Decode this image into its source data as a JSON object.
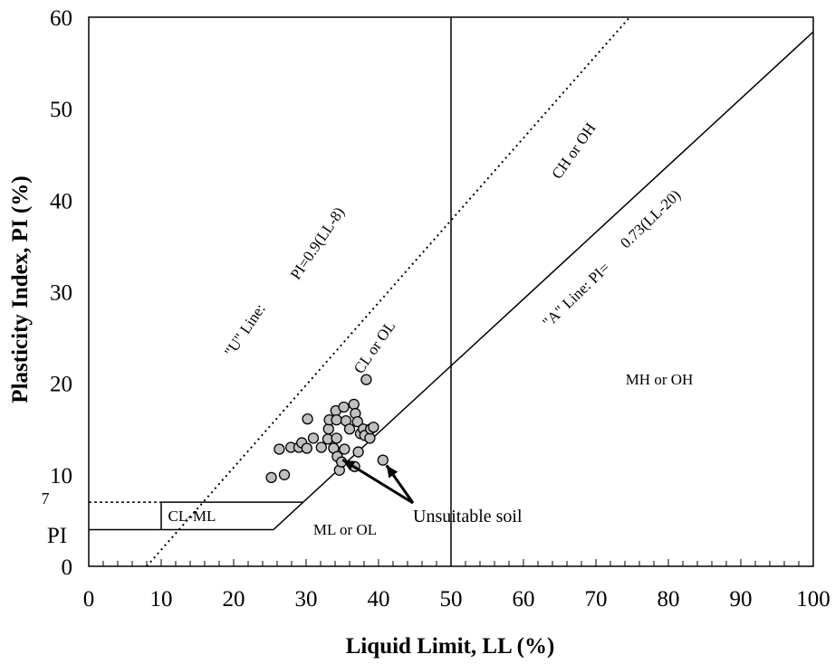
{
  "chart_data": {
    "type": "scatter",
    "title": "",
    "xlabel": "Liquid Limit, LL (%)",
    "ylabel": "Plasticity Index, PI (%)",
    "xlim": [
      0,
      100
    ],
    "ylim": [
      0,
      60
    ],
    "x_ticks": [
      0,
      10,
      20,
      30,
      40,
      50,
      60,
      70,
      80,
      90,
      100
    ],
    "y_ticks": [
      0,
      10,
      20,
      30,
      40,
      50,
      60
    ],
    "extra_y_labels": [
      "7",
      "PI"
    ],
    "grid": false,
    "series": [
      {
        "points": [
          [
            25.2,
            9.7
          ],
          [
            27.0,
            10.0
          ],
          [
            26.3,
            12.8
          ],
          [
            27.9,
            13.0
          ],
          [
            29.0,
            13.0
          ],
          [
            29.4,
            13.5
          ],
          [
            30.1,
            12.9
          ],
          [
            30.2,
            16.1
          ],
          [
            31.0,
            14.0
          ],
          [
            32.1,
            13.0
          ],
          [
            33.0,
            13.9
          ],
          [
            33.1,
            15.0
          ],
          [
            33.2,
            16.0
          ],
          [
            33.8,
            12.9
          ],
          [
            34.1,
            17.0
          ],
          [
            34.2,
            16.0
          ],
          [
            34.2,
            14.0
          ],
          [
            34.3,
            12.0
          ],
          [
            34.6,
            10.5
          ],
          [
            34.9,
            11.4
          ],
          [
            35.2,
            17.4
          ],
          [
            35.3,
            12.8
          ],
          [
            35.5,
            15.9
          ],
          [
            36.0,
            15.0
          ],
          [
            36.6,
            17.7
          ],
          [
            36.7,
            10.9
          ],
          [
            36.8,
            16.7
          ],
          [
            37.1,
            15.8
          ],
          [
            37.2,
            12.5
          ],
          [
            37.5,
            14.5
          ],
          [
            37.9,
            15.0
          ],
          [
            38.1,
            14.3
          ],
          [
            38.3,
            20.4
          ],
          [
            38.8,
            14.0
          ],
          [
            38.9,
            15.0
          ],
          [
            39.3,
            15.2
          ],
          [
            40.6,
            11.6
          ]
        ]
      }
    ],
    "reference_lines": [
      {
        "label_parts": [
          "\"U\" Line:",
          "PI=0.9(LL-8)"
        ],
        "equation": "PI = 0.9(LL - 8)",
        "style": "dotted"
      },
      {
        "label_parts": [
          "\"A\" Line: PI=",
          "0.73(LL-20)"
        ],
        "equation": "PI = 0.73(LL - 20)",
        "style": "solid"
      },
      {
        "label": "LL = 50",
        "style": "solid"
      }
    ],
    "zones": [
      "CL or OL",
      "CH or OH",
      "MH or OH",
      "ML or OL",
      "CL-ML"
    ],
    "annotations": [
      {
        "text": "Unsuitable soil",
        "arrows_to": [
          [
            34.3,
            12.0
          ],
          [
            40.6,
            11.6
          ]
        ]
      }
    ]
  }
}
